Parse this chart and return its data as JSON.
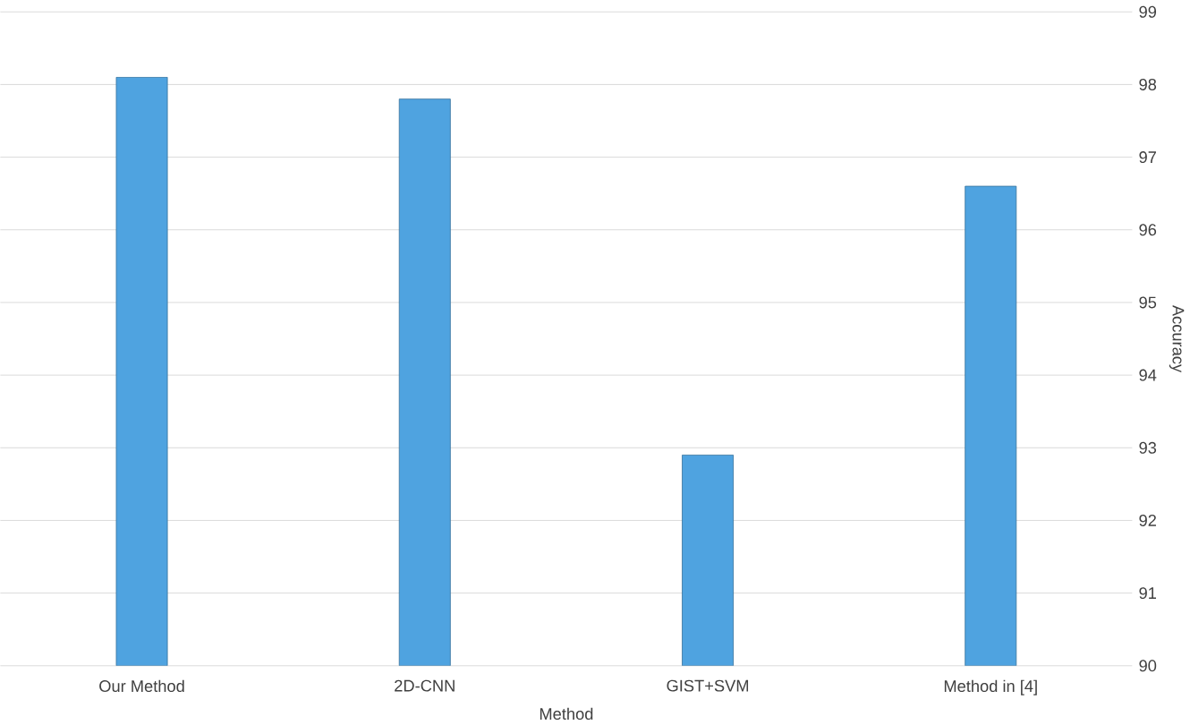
{
  "chart_data": {
    "type": "bar",
    "xlabel": "Method",
    "ylabel": "Accuracy",
    "categories": [
      "Our Method",
      "2D-CNN",
      "GIST+SVM",
      "Method in [4]"
    ],
    "values": [
      98.1,
      97.8,
      92.9,
      96.6
    ],
    "color": "#4fa3e0",
    "ylim": [
      90,
      99
    ],
    "yticks": [
      90,
      91,
      92,
      93,
      94,
      95,
      96,
      97,
      98,
      99
    ],
    "grid": "y"
  }
}
